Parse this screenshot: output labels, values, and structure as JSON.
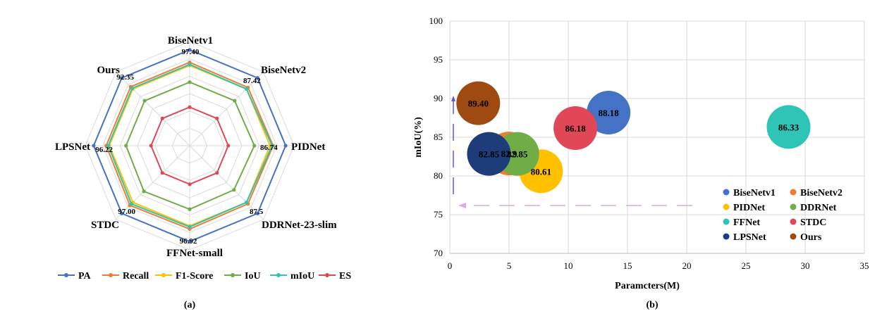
{
  "chart_data": [
    {
      "type": "radar",
      "caption": "(a)",
      "axes": [
        "BiseNetv1",
        "BiseNetv2",
        "PIDNet",
        "DDRNet-23-slim",
        "FFNet-small",
        "STDC",
        "LPSNet",
        "Ours"
      ],
      "value_labels": [
        "97.40",
        "87.42",
        "86.74",
        "87.5",
        "96.92",
        "97.00",
        "96.22",
        "92.35"
      ],
      "series": [
        {
          "name": "PA",
          "color": "#4472C4",
          "values": [
            0.92,
            0.92,
            0.92,
            0.92,
            0.92,
            0.92,
            0.92,
            0.92
          ]
        },
        {
          "name": "Recall",
          "color": "#ED7D31",
          "values": [
            0.8,
            0.79,
            0.8,
            0.79,
            0.8,
            0.81,
            0.8,
            0.8
          ]
        },
        {
          "name": "F1-Score",
          "color": "#FFC000",
          "values": [
            0.77,
            0.77,
            0.77,
            0.77,
            0.77,
            0.77,
            0.77,
            0.77
          ]
        },
        {
          "name": "IoU",
          "color": "#70AD47",
          "values": [
            0.61,
            0.61,
            0.62,
            0.6,
            0.61,
            0.62,
            0.61,
            0.61
          ]
        },
        {
          "name": "mIoU",
          "color": "#2EC4B6",
          "values": [
            0.78,
            0.77,
            0.79,
            0.77,
            0.78,
            0.79,
            0.78,
            0.78
          ]
        },
        {
          "name": "ES",
          "color": "#E04858",
          "values": [
            0.37,
            0.37,
            0.37,
            0.37,
            0.37,
            0.37,
            0.37,
            0.37
          ]
        }
      ]
    },
    {
      "type": "scatter",
      "caption": "(b)",
      "xlabel": "Paramcters(M)",
      "ylabel": "mIoU(%)",
      "xlim": [
        0,
        35
      ],
      "ylim": [
        70,
        100
      ],
      "xticks": [
        "0",
        "5",
        "10",
        "15",
        "20",
        "25",
        "30",
        "35"
      ],
      "yticks": [
        "70",
        "75",
        "80",
        "85",
        "90",
        "95",
        "100"
      ],
      "grid": true,
      "legend_position": "bottom-right",
      "series": [
        {
          "name": "BiseNetv1",
          "color": "#4472C4",
          "x": 13.4,
          "y": 88.18,
          "label": "88.18"
        },
        {
          "name": "BiseNetv2",
          "color": "#ED7D31",
          "x": 5.0,
          "y": 82.9,
          "label": "82.9"
        },
        {
          "name": "PIDNet",
          "color": "#FFC000",
          "x": 7.7,
          "y": 80.61,
          "label": "80.61"
        },
        {
          "name": "DDRNet",
          "color": "#70AD47",
          "x": 5.7,
          "y": 82.85,
          "label": "82.85"
        },
        {
          "name": "FFNet",
          "color": "#2EC4B6",
          "x": 28.6,
          "y": 86.33,
          "label": "86.33"
        },
        {
          "name": "STDC",
          "color": "#E04858",
          "x": 10.6,
          "y": 86.18,
          "label": "86.18"
        },
        {
          "name": "LPSNet",
          "color": "#1F3C7A",
          "x": 3.3,
          "y": 82.85,
          "label": "82.85"
        },
        {
          "name": "Ours",
          "color": "#9E4A10",
          "x": 2.4,
          "y": 89.4,
          "label": "89.40"
        }
      ]
    }
  ]
}
